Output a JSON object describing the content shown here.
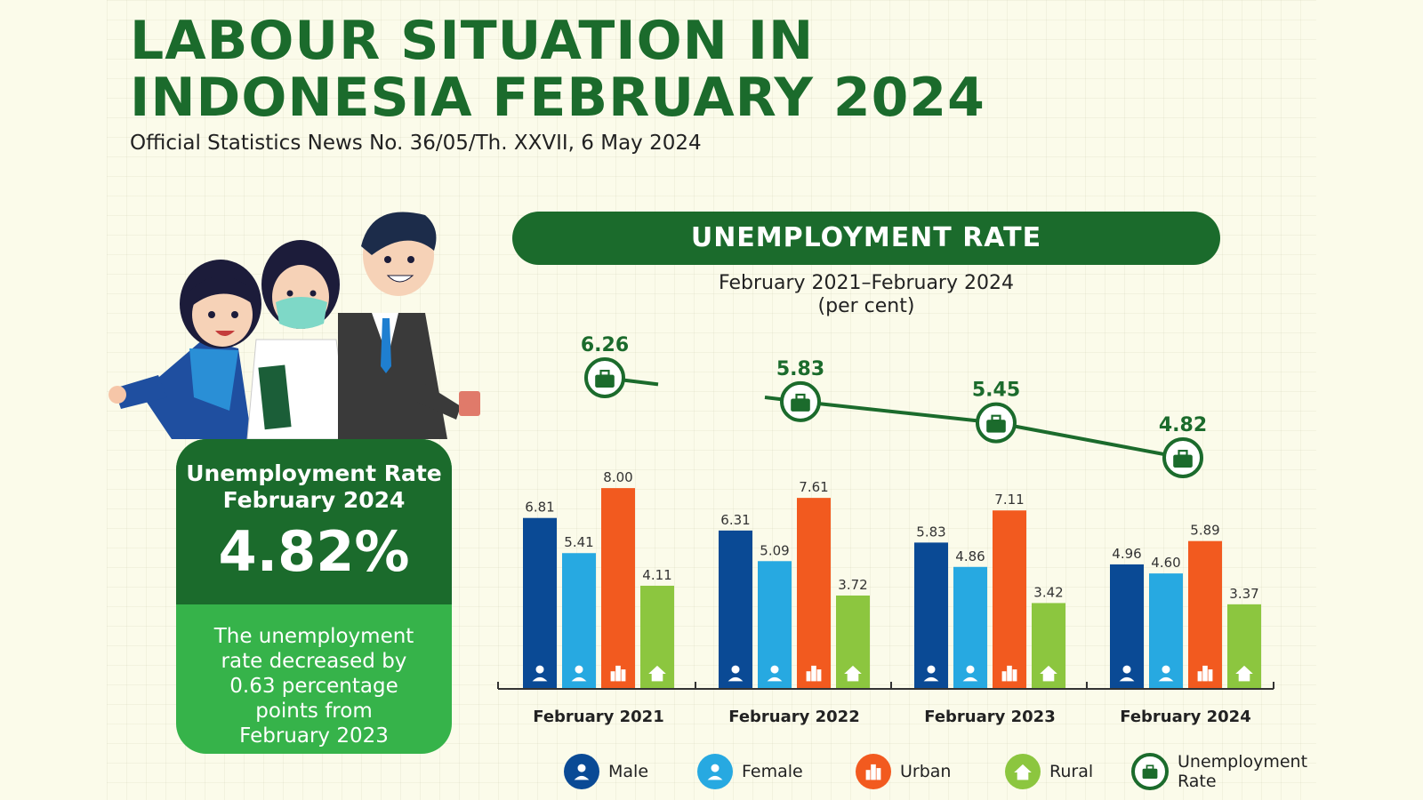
{
  "header": {
    "title": "LABOUR SITUATION IN INDONESIA FEBRUARY 2024",
    "subtitle": "Official Statistics News No. 36/05/Th. XXVII, 6 May 2024"
  },
  "kpi": {
    "label": "Unemployment Rate\nFebruary 2024",
    "value": "4.82%",
    "description": "The unemployment\nrate decreased by\n0.63 percentage\npoints from\nFebruary 2023"
  },
  "chart_header": {
    "title": "UNEMPLOYMENT RATE",
    "period": "February 2021–February 2024",
    "unit": "(per cent)"
  },
  "colors": {
    "male": "#0a4a95",
    "female": "#27a9e1",
    "urban": "#f25a1f",
    "rural": "#8cc63f",
    "line": "#1b6b2c",
    "dark_green": "#1b6b2c",
    "light_green": "#36b34a"
  },
  "chart_data": {
    "type": "bar",
    "categories": [
      "February 2021",
      "February 2022",
      "February 2023",
      "February 2024"
    ],
    "series": [
      {
        "name": "Male",
        "values": [
          6.81,
          6.31,
          5.83,
          4.96
        ],
        "labels": [
          "6.81",
          "6.31",
          "5.83",
          "4.96"
        ],
        "icon": "person-icon",
        "color": "#0a4a95"
      },
      {
        "name": "Female",
        "values": [
          5.41,
          5.09,
          4.86,
          4.6
        ],
        "labels": [
          "5.41",
          "5.09",
          "4.86",
          "4.60"
        ],
        "icon": "person-icon",
        "color": "#27a9e1"
      },
      {
        "name": "Urban",
        "values": [
          8.0,
          7.61,
          7.11,
          5.89
        ],
        "labels": [
          "8.00",
          "7.61",
          "7.11",
          "5.89"
        ],
        "icon": "city-icon",
        "color": "#f25a1f"
      },
      {
        "name": "Rural",
        "values": [
          4.11,
          3.72,
          3.42,
          3.37
        ],
        "labels": [
          "4.11",
          "3.72",
          "3.42",
          "3.37"
        ],
        "icon": "house-icon",
        "color": "#8cc63f"
      }
    ],
    "line_series": {
      "name": "Unemployment Rate",
      "values": [
        6.26,
        5.83,
        5.45,
        4.82
      ],
      "labels": [
        "6.26",
        "5.83",
        "5.45",
        "4.82"
      ],
      "icon": "briefcase-icon"
    },
    "ylim": [
      0,
      8.5
    ]
  },
  "legend": [
    {
      "name": "Male",
      "icon": "person-icon"
    },
    {
      "name": "Female",
      "icon": "person-icon"
    },
    {
      "name": "Urban",
      "icon": "city-icon"
    },
    {
      "name": "Rural",
      "icon": "house-icon"
    },
    {
      "name": "Unemployment\nRate",
      "icon": "briefcase-icon"
    }
  ]
}
